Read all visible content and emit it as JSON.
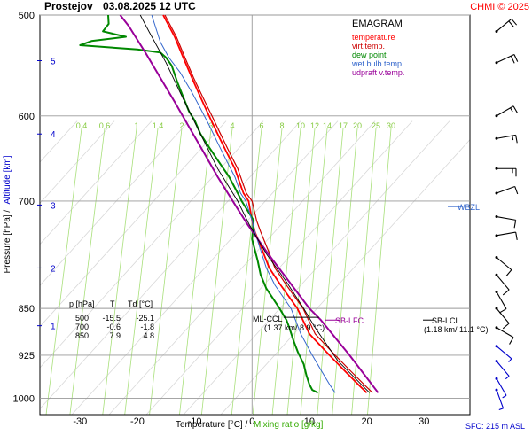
{
  "header": {
    "station": "Prostejov",
    "datetime": "03.08.2025 12 UTC",
    "credit": "CHMI © 2025"
  },
  "legend": {
    "title": "EMAGRAM",
    "items": [
      {
        "label": "temperature",
        "color": "#ff0000"
      },
      {
        "label": "virt.temp.",
        "color": "#cc0000"
      },
      {
        "label": "dew point",
        "color": "#008800"
      },
      {
        "label": "wet bulb temp.",
        "color": "#3366cc"
      },
      {
        "label": "udpraft v.temp.",
        "color": "#990099"
      }
    ]
  },
  "chart_data": {
    "type": "line",
    "subtype": "emagram",
    "x_axis": {
      "label_prefix": "Temperature [°C]  /",
      "label_suffix": "Mixing ratio [g/kg]",
      "range": [
        -37,
        38
      ],
      "ticks": [
        -30,
        -20,
        -10,
        0,
        10,
        20,
        30
      ]
    },
    "y_axis": {
      "label_prefix": "Pressure [hPa]  /",
      "label_suffix": "Altitude [km]",
      "scale": "log",
      "range": [
        1030,
        500
      ],
      "ticks": [
        500,
        600,
        700,
        850,
        925,
        1000
      ]
    },
    "altitude_ticks": [
      {
        "label": "1",
        "p": 877
      },
      {
        "label": "2",
        "p": 790
      },
      {
        "label": "3",
        "p": 705
      },
      {
        "label": "4",
        "p": 620
      },
      {
        "label": "5",
        "p": 543
      }
    ],
    "mixing_ratio_labels": [
      "0.4",
      "0.6",
      "1",
      "1.4",
      "2",
      "3",
      "4",
      "6",
      "8",
      "10",
      "12",
      "14",
      "17",
      "20",
      "25",
      "30"
    ],
    "series": [
      {
        "name": "temperature",
        "color": "#ff0000",
        "points": [
          [
            20.0,
            990
          ],
          [
            18.5,
            975
          ],
          [
            16.0,
            950
          ],
          [
            13.5,
            925
          ],
          [
            10.0,
            890
          ],
          [
            7.9,
            850
          ],
          [
            5.0,
            815
          ],
          [
            3.0,
            790
          ],
          [
            1.8,
            765
          ],
          [
            0.5,
            740
          ],
          [
            0.0,
            725
          ],
          [
            -0.6,
            700
          ],
          [
            -1.5,
            690
          ],
          [
            -2.0,
            680
          ],
          [
            -3.0,
            660
          ],
          [
            -4.5,
            640
          ],
          [
            -6.0,
            620
          ],
          [
            -7.5,
            600
          ],
          [
            -9.0,
            580
          ],
          [
            -10.5,
            560
          ],
          [
            -12.0,
            540
          ],
          [
            -13.5,
            520
          ],
          [
            -15.5,
            500
          ]
        ]
      },
      {
        "name": "virt.temp.",
        "color": "#cc0000",
        "points": [
          [
            21.0,
            990
          ],
          [
            19.5,
            975
          ],
          [
            17.0,
            950
          ],
          [
            14.5,
            925
          ],
          [
            11.0,
            890
          ],
          [
            8.9,
            850
          ],
          [
            6.0,
            815
          ],
          [
            4.0,
            790
          ],
          [
            2.8,
            765
          ],
          [
            1.5,
            740
          ],
          [
            0.8,
            725
          ],
          [
            0.0,
            700
          ],
          [
            -1.0,
            690
          ],
          [
            -1.5,
            680
          ],
          [
            -2.5,
            660
          ],
          [
            -4.0,
            640
          ],
          [
            -5.5,
            620
          ],
          [
            -7.0,
            600
          ],
          [
            -8.6,
            580
          ],
          [
            -10.2,
            560
          ],
          [
            -11.7,
            540
          ],
          [
            -13.2,
            520
          ],
          [
            -15.2,
            500
          ]
        ]
      },
      {
        "name": "dew point",
        "color": "#008800",
        "points": [
          [
            11.5,
            990
          ],
          [
            10.5,
            985
          ],
          [
            10.0,
            975
          ],
          [
            9.5,
            960
          ],
          [
            9.0,
            940
          ],
          [
            8.0,
            920
          ],
          [
            7.2,
            900
          ],
          [
            6.5,
            880
          ],
          [
            6.0,
            868
          ],
          [
            4.8,
            850
          ],
          [
            2.5,
            820
          ],
          [
            1.5,
            800
          ],
          [
            1.0,
            780
          ],
          [
            0.0,
            750
          ],
          [
            0.3,
            725
          ],
          [
            -1.8,
            700
          ],
          [
            -2.5,
            690
          ],
          [
            -4.0,
            670
          ],
          [
            -6.0,
            650
          ],
          [
            -7.5,
            635
          ],
          [
            -9.0,
            620
          ],
          [
            -10.0,
            605
          ],
          [
            -11.0,
            595
          ],
          [
            -12.0,
            580
          ],
          [
            -13.0,
            565
          ],
          [
            -14.0,
            548
          ],
          [
            -15.0,
            540
          ],
          [
            -16.0,
            535
          ],
          [
            -20.0,
            532
          ],
          [
            -25.0,
            530
          ],
          [
            -30.0,
            528
          ],
          [
            -28.0,
            524
          ],
          [
            -22.0,
            520
          ],
          [
            -26.0,
            515
          ],
          [
            -25.0,
            508
          ],
          [
            -25.1,
            500
          ]
        ]
      },
      {
        "name": "wet bulb temp.",
        "color": "#3366cc",
        "points": [
          [
            14.5,
            990
          ],
          [
            13.5,
            975
          ],
          [
            12.0,
            950
          ],
          [
            10.5,
            925
          ],
          [
            8.5,
            890
          ],
          [
            6.8,
            850
          ],
          [
            4.0,
            815
          ],
          [
            2.5,
            790
          ],
          [
            1.5,
            765
          ],
          [
            0.5,
            740
          ],
          [
            0.0,
            725
          ],
          [
            -1.1,
            700
          ],
          [
            -2.0,
            690
          ],
          [
            -3.0,
            670
          ],
          [
            -4.5,
            650
          ],
          [
            -6.0,
            630
          ],
          [
            -7.5,
            610
          ],
          [
            -9.0,
            592
          ],
          [
            -10.5,
            575
          ],
          [
            -12.5,
            555
          ],
          [
            -14.5,
            540
          ],
          [
            -16.0,
            525
          ],
          [
            -17.5,
            500
          ]
        ]
      },
      {
        "name": "udpraft v.temp.",
        "color": "#990099",
        "points": [
          [
            22.0,
            990
          ],
          [
            17.0,
            925
          ],
          [
            12.0,
            868
          ],
          [
            10.0,
            850
          ],
          [
            6.5,
            810
          ],
          [
            2.8,
            770
          ],
          [
            -0.8,
            730
          ],
          [
            -2.5,
            710
          ],
          [
            -6.0,
            670
          ],
          [
            -8.5,
            640
          ],
          [
            -11.0,
            612
          ],
          [
            -13.5,
            585
          ],
          [
            -16.0,
            560
          ],
          [
            -18.5,
            536
          ],
          [
            -21.5,
            510
          ],
          [
            -23.0,
            500
          ]
        ]
      }
    ],
    "table": {
      "headers": [
        "p [hPa]",
        "T",
        "Td [°C]"
      ],
      "rows": [
        [
          "500",
          "-15.5",
          "-25.1"
        ],
        [
          "700",
          "-0.6",
          "-1.8"
        ],
        [
          "850",
          "7.9",
          "4.8"
        ]
      ]
    },
    "annotations": {
      "wbzl": {
        "label": "WBZL",
        "p": 707
      },
      "ml_ccl": {
        "line1": "ML-CCL",
        "line2": "(1.37 km/ 8.9 °C)",
        "p": 850,
        "t": 8.9
      },
      "sb_lfc": {
        "label": "SB-LFC",
        "p": 868,
        "t": 12.0
      },
      "sb_lcl": {
        "line1": "SB-LCL",
        "line2": "(1.18 km/ 11.1 °C)",
        "p": 868
      }
    },
    "wind_barbs": [
      {
        "p": 515,
        "dir": 230,
        "kt": 20
      },
      {
        "p": 545,
        "dir": 245,
        "kt": 20
      },
      {
        "p": 600,
        "dir": 240,
        "kt": 15
      },
      {
        "p": 625,
        "dir": 260,
        "kt": 15
      },
      {
        "p": 660,
        "dir": 270,
        "kt": 15
      },
      {
        "p": 690,
        "dir": 250,
        "kt": 10
      },
      {
        "p": 720,
        "dir": 280,
        "kt": 10
      },
      {
        "p": 745,
        "dir": 260,
        "kt": 10
      },
      {
        "p": 775,
        "dir": 310,
        "kt": 10
      },
      {
        "p": 800,
        "dir": 320,
        "kt": 10
      },
      {
        "p": 825,
        "dir": 330,
        "kt": 10
      },
      {
        "p": 850,
        "dir": 320,
        "kt": 10
      },
      {
        "p": 880,
        "dir": 300,
        "kt": 10
      },
      {
        "p": 910,
        "dir": 310,
        "kt": 5
      },
      {
        "p": 935,
        "dir": 320,
        "kt": 5
      },
      {
        "p": 965,
        "dir": 330,
        "kt": 5
      },
      {
        "p": 985,
        "dir": 340,
        "kt": 5
      }
    ]
  },
  "footer": {
    "sfc": "SFC: 215 m ASL"
  }
}
